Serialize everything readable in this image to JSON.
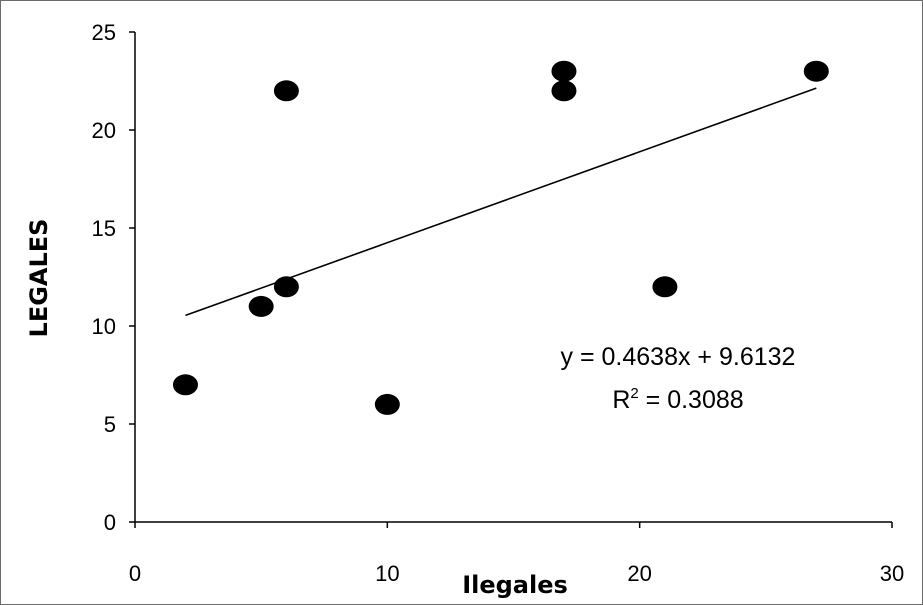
{
  "chart_data": {
    "type": "scatter",
    "title": "",
    "xlabel": "Ilegales",
    "ylabel": "LEGALES",
    "xlim": [
      0,
      30
    ],
    "ylim": [
      0,
      25
    ],
    "xticks": [
      0,
      10,
      20,
      30
    ],
    "yticks": [
      0,
      5,
      10,
      15,
      20,
      25
    ],
    "grid": false,
    "legend": "none",
    "marker_color": "#000000",
    "trendline_color": "#000000",
    "series": [
      {
        "x": [
          2,
          5,
          6,
          6,
          10,
          17,
          17,
          21,
          27
        ],
        "y": [
          7,
          11,
          12,
          22,
          6,
          22,
          23,
          12,
          23
        ]
      }
    ],
    "trendline": {
      "slope": 0.4638,
      "intercept": 9.6132,
      "x_range": [
        2,
        27
      ],
      "equation": "y = 0.4638x + 9.6132",
      "r2_label": "R",
      "r2_superscript": "2",
      "r2_value": " = 0.3088"
    }
  }
}
